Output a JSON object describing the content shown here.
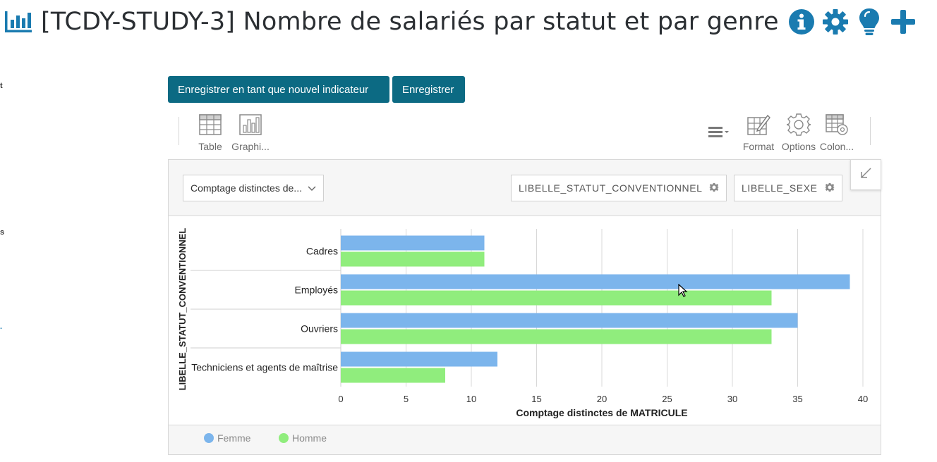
{
  "header": {
    "title": "[TCDY-STUDY-3] Nombre de salariés par statut et par genre",
    "icons": [
      "bar-chart-icon",
      "info-icon",
      "gear-icon",
      "lightbulb-icon",
      "plus-icon"
    ],
    "accent_color": "#1a7bb0"
  },
  "side_fragments": [
    "t",
    "s",
    "."
  ],
  "buttons": {
    "save_new": "Enregistrer en tant que nouvel indicateur",
    "save": "Enregistrer"
  },
  "toolbar": {
    "table": "Table",
    "chart": "Graphi...",
    "format": "Format",
    "options": "Options",
    "columns": "Colon..."
  },
  "selectors": {
    "measure": "Comptage distinctes de...",
    "dimension": "LIBELLE_STATUT_CONVENTIONNEL",
    "series_field": "LIBELLE_SEXE"
  },
  "chart_data": {
    "type": "bar",
    "orientation": "horizontal",
    "categories": [
      "Cadres",
      "Employés",
      "Ouvriers",
      "Techniciens et agents de maîtrise"
    ],
    "series": [
      {
        "name": "Femme",
        "color": "#7cb5ec",
        "values": [
          11,
          39,
          35,
          12
        ]
      },
      {
        "name": "Homme",
        "color": "#90ed7d",
        "values": [
          11,
          33,
          33,
          8
        ]
      }
    ],
    "xlabel": "Comptage distinctes de MATRICULE",
    "ylabel": "LIBELLE_STATUT_CONVENTIONNEL",
    "xlim": [
      0,
      40
    ],
    "xticks": [
      0,
      5,
      10,
      15,
      20,
      25,
      30,
      35,
      40
    ],
    "grid": true,
    "legend_position": "bottom-left"
  }
}
